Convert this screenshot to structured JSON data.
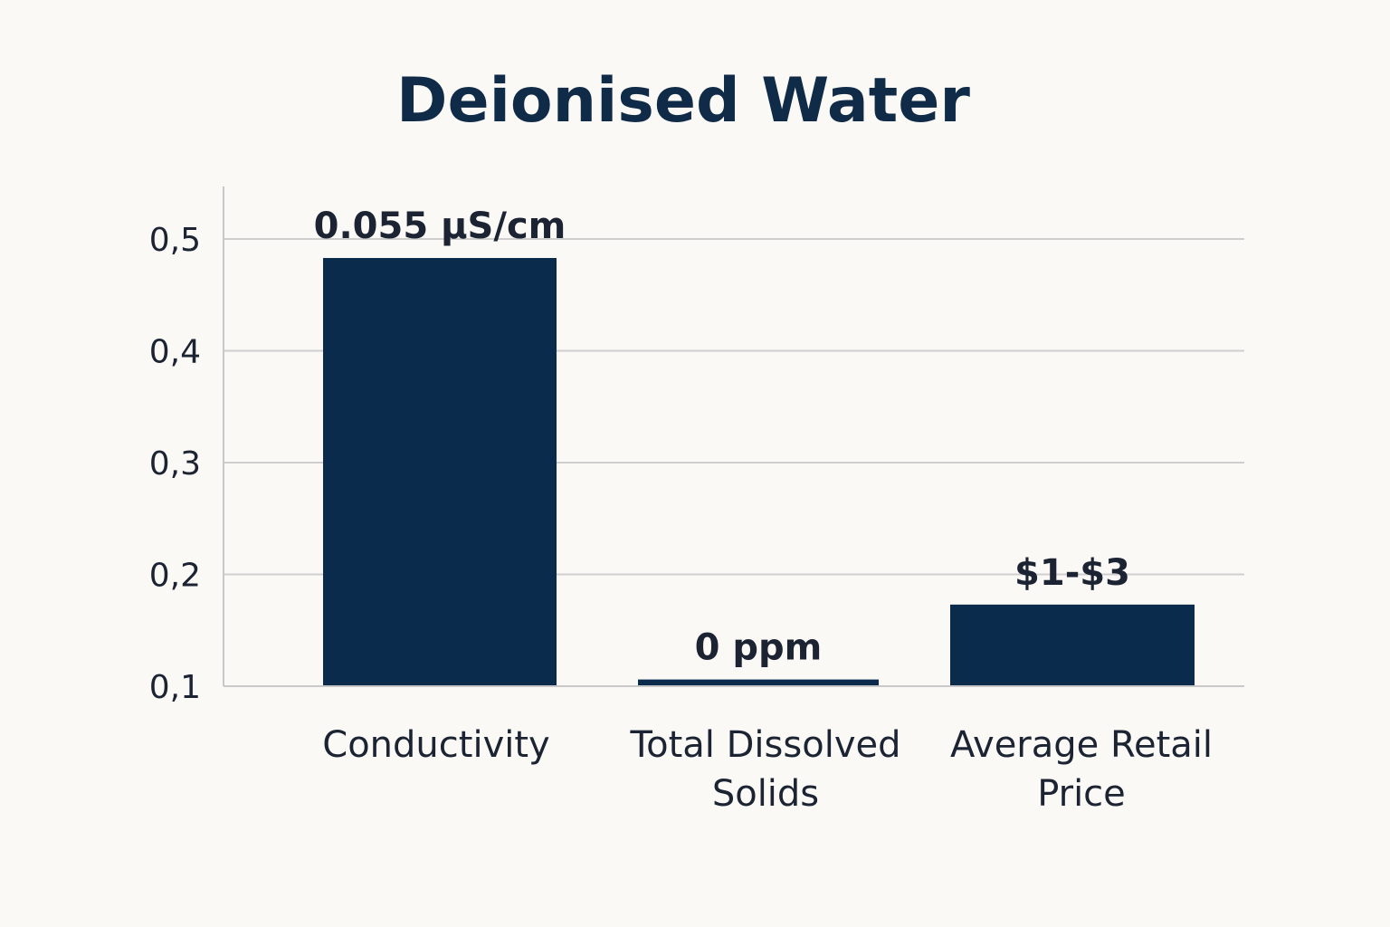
{
  "chart_data": {
    "type": "bar",
    "title": "Deionised Water",
    "categories": [
      [
        "Conductivity"
      ],
      [
        "Total Dissolved",
        "Solids"
      ],
      [
        "Average Retail",
        "Price"
      ]
    ],
    "values": [
      0.483,
      0.106,
      0.173
    ],
    "data_labels": [
      "0.055 µS/cm",
      "0 ppm",
      "$1-$3"
    ],
    "y_ticks": [
      0.1,
      0.2,
      0.3,
      0.4,
      0.5
    ],
    "y_tick_labels": [
      "0,1",
      "0,2",
      "0,3",
      "0,4",
      "0,5"
    ],
    "ylim": [
      0.1,
      0.5
    ],
    "grid": true,
    "colors": {
      "bar": "#0a2b4b",
      "title": "#0f2b48"
    }
  }
}
